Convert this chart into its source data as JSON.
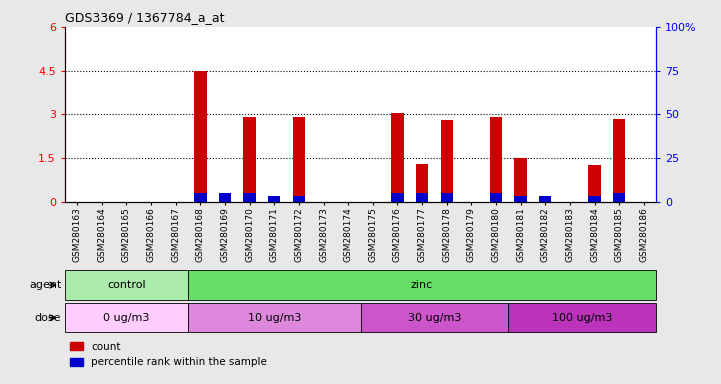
{
  "title": "GDS3369 / 1367784_a_at",
  "samples": [
    "GSM280163",
    "GSM280164",
    "GSM280165",
    "GSM280166",
    "GSM280167",
    "GSM280168",
    "GSM280169",
    "GSM280170",
    "GSM280171",
    "GSM280172",
    "GSM280173",
    "GSM280174",
    "GSM280175",
    "GSM280176",
    "GSM280177",
    "GSM280178",
    "GSM280179",
    "GSM280180",
    "GSM280181",
    "GSM280182",
    "GSM280183",
    "GSM280184",
    "GSM280185",
    "GSM280186"
  ],
  "count_values": [
    0,
    0,
    0,
    0,
    0,
    4.5,
    0.22,
    2.9,
    0,
    2.9,
    0,
    0,
    0,
    3.05,
    1.3,
    2.8,
    0,
    2.9,
    1.5,
    0,
    0,
    1.25,
    2.85,
    0
  ],
  "percentile_values": [
    0,
    0,
    0,
    0,
    0,
    5,
    5,
    5,
    3,
    3,
    0,
    0,
    0,
    5,
    5,
    5,
    0,
    5,
    3,
    3,
    0,
    3,
    5,
    0
  ],
  "bar_color_count": "#cc0000",
  "bar_color_pct": "#0000cc",
  "ylim_left": [
    0,
    6
  ],
  "ylim_right": [
    0,
    100
  ],
  "yticks_left": [
    0,
    1.5,
    3.0,
    4.5,
    6
  ],
  "yticks_right": [
    0,
    25,
    50,
    75,
    100
  ],
  "ytick_labels_left": [
    "0",
    "1.5",
    "3",
    "4.5",
    "6"
  ],
  "ytick_labels_right": [
    "0",
    "25",
    "50",
    "75",
    "100%"
  ],
  "grid_values": [
    1.5,
    3.0,
    4.5
  ],
  "agent_groups": [
    {
      "label": "control",
      "start": 0,
      "end": 5,
      "color": "#aaeaaa"
    },
    {
      "label": "zinc",
      "start": 5,
      "end": 24,
      "color": "#66dd66"
    }
  ],
  "dose_groups": [
    {
      "label": "0 ug/m3",
      "start": 0,
      "end": 5,
      "color": "#ffccff"
    },
    {
      "label": "10 ug/m3",
      "start": 5,
      "end": 12,
      "color": "#dd88dd"
    },
    {
      "label": "30 ug/m3",
      "start": 12,
      "end": 18,
      "color": "#cc55cc"
    },
    {
      "label": "100 ug/m3",
      "start": 18,
      "end": 24,
      "color": "#bb33bb"
    }
  ],
  "bar_width": 0.5,
  "background_color": "#e8e8e8",
  "plot_bg_color": "#ffffff"
}
